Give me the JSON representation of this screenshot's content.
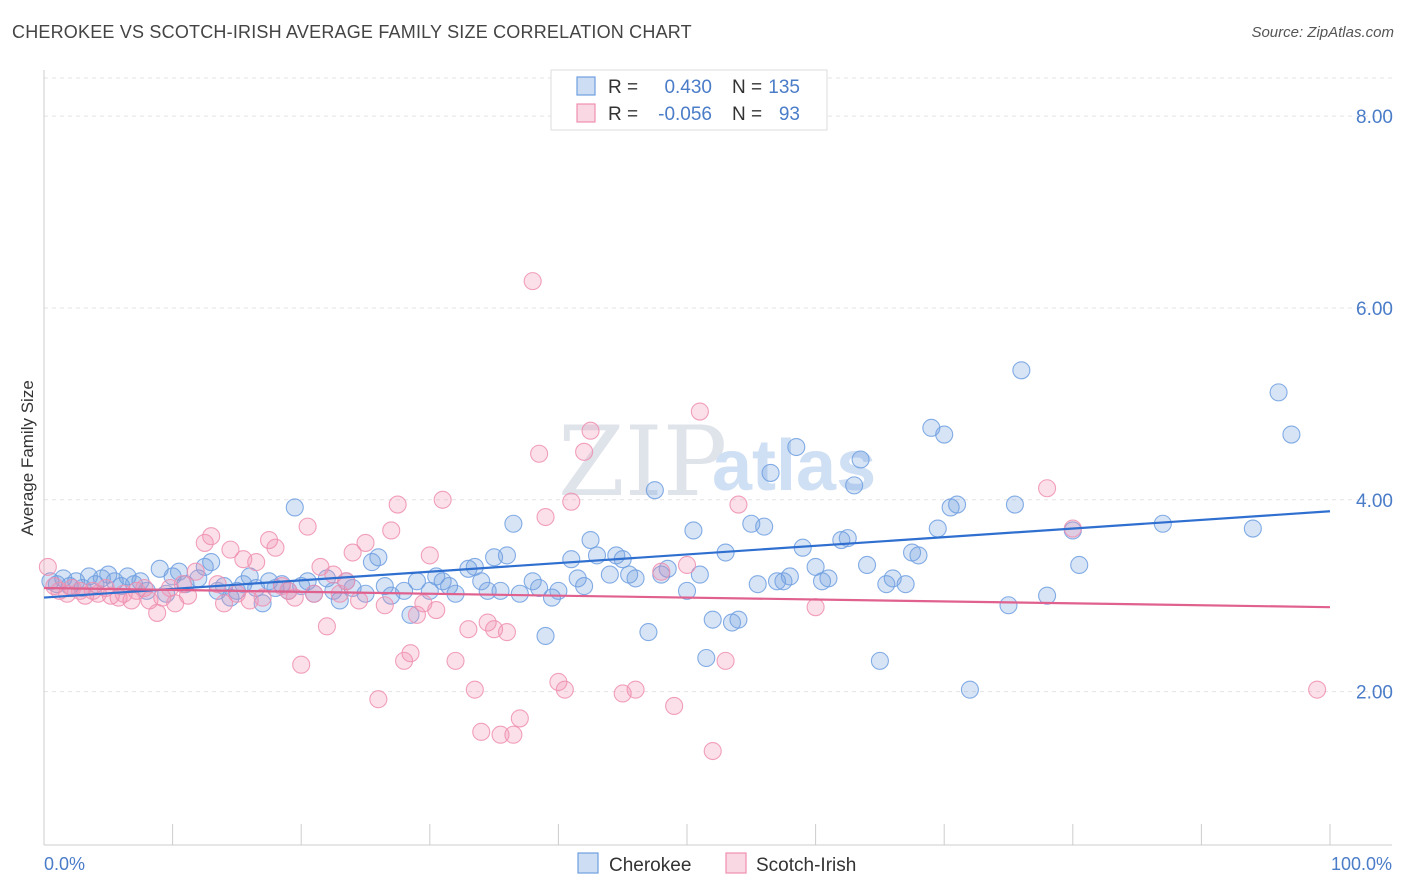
{
  "header": {
    "title": "CHEROKEE VS SCOTCH-IRISH AVERAGE FAMILY SIZE CORRELATION CHART",
    "source": "Source: ZipAtlas.com"
  },
  "watermark": {
    "zip": "ZIP",
    "atlas": "atlas"
  },
  "legend_top": [
    {
      "r_label": "R =",
      "r_value": "0.430",
      "n_label": "N =",
      "n_value": "135",
      "color": "#6f9fe0"
    },
    {
      "r_label": "R =",
      "r_value": "-0.056",
      "n_label": "N =",
      "n_value": "93",
      "color": "#ef8fb0"
    }
  ],
  "legend_bottom": [
    {
      "label": "Cherokee",
      "color": "#6f9fe0"
    },
    {
      "label": "Scotch-Irish",
      "color": "#ef8fb0"
    }
  ],
  "chart_data": {
    "type": "scatter",
    "title": "CHEROKEE VS SCOTCH-IRISH AVERAGE FAMILY SIZE CORRELATION CHART",
    "xlabel": "",
    "ylabel": "Average Family Size",
    "xlim": [
      0,
      100
    ],
    "ylim": [
      0.4,
      8.2
    ],
    "x_tick_labels": [
      "0.0%",
      "100.0%"
    ],
    "y_ticks": [
      2,
      4,
      6,
      8
    ],
    "y_tick_labels": [
      "2.00",
      "4.00",
      "6.00",
      "8.00"
    ],
    "grid": true,
    "legend_position": "top-center",
    "series": [
      {
        "name": "Cherokee",
        "color": "#6f9fe0",
        "trend": {
          "x": [
            0,
            100
          ],
          "y": [
            2.98,
            3.88
          ]
        },
        "points": [
          [
            0.5,
            3.15
          ],
          [
            1,
            3.12
          ],
          [
            1.5,
            3.18
          ],
          [
            2,
            3.1
          ],
          [
            2.5,
            3.15
          ],
          [
            3,
            3.08
          ],
          [
            3.5,
            3.2
          ],
          [
            4,
            3.12
          ],
          [
            4.5,
            3.18
          ],
          [
            5,
            3.22
          ],
          [
            5.5,
            3.15
          ],
          [
            6,
            3.1
          ],
          [
            6.5,
            3.2
          ],
          [
            7,
            3.12
          ],
          [
            7.5,
            3.15
          ],
          [
            8,
            3.05
          ],
          [
            9,
            3.28
          ],
          [
            9.5,
            3.02
          ],
          [
            10,
            3.2
          ],
          [
            10.5,
            3.25
          ],
          [
            11,
            3.12
          ],
          [
            12,
            3.18
          ],
          [
            12.5,
            3.3
          ],
          [
            13,
            3.35
          ],
          [
            13.5,
            3.05
          ],
          [
            14,
            3.1
          ],
          [
            14.5,
            2.98
          ],
          [
            15,
            3.05
          ],
          [
            15.5,
            3.12
          ],
          [
            16,
            3.2
          ],
          [
            16.5,
            3.08
          ],
          [
            17,
            2.92
          ],
          [
            17.5,
            3.15
          ],
          [
            18,
            3.08
          ],
          [
            18.5,
            3.12
          ],
          [
            19,
            3.05
          ],
          [
            19.5,
            3.92
          ],
          [
            20,
            3.1
          ],
          [
            20.5,
            3.15
          ],
          [
            21,
            3.02
          ],
          [
            22,
            3.18
          ],
          [
            22.5,
            3.05
          ],
          [
            23,
            2.95
          ],
          [
            23.5,
            3.15
          ],
          [
            24,
            3.08
          ],
          [
            25,
            3.02
          ],
          [
            25.5,
            3.35
          ],
          [
            26,
            3.4
          ],
          [
            26.5,
            3.1
          ],
          [
            27,
            3.0
          ],
          [
            28,
            3.05
          ],
          [
            28.5,
            2.8
          ],
          [
            29,
            3.15
          ],
          [
            30,
            3.05
          ],
          [
            30.5,
            3.2
          ],
          [
            31,
            3.15
          ],
          [
            31.5,
            3.1
          ],
          [
            32,
            3.02
          ],
          [
            33,
            3.28
          ],
          [
            33.5,
            3.3
          ],
          [
            34,
            3.15
          ],
          [
            34.5,
            3.05
          ],
          [
            35,
            3.4
          ],
          [
            35.5,
            3.05
          ],
          [
            36,
            3.42
          ],
          [
            36.5,
            3.75
          ],
          [
            37,
            3.02
          ],
          [
            38,
            3.15
          ],
          [
            38.5,
            3.08
          ],
          [
            39,
            2.58
          ],
          [
            39.5,
            2.98
          ],
          [
            40,
            3.05
          ],
          [
            41,
            3.38
          ],
          [
            41.5,
            3.18
          ],
          [
            42,
            3.1
          ],
          [
            42.5,
            3.58
          ],
          [
            43,
            3.42
          ],
          [
            44,
            3.22
          ],
          [
            44.5,
            3.42
          ],
          [
            45,
            3.38
          ],
          [
            45.5,
            3.22
          ],
          [
            46,
            3.18
          ],
          [
            47,
            2.62
          ],
          [
            47.5,
            4.1
          ],
          [
            48,
            3.22
          ],
          [
            48.5,
            3.28
          ],
          [
            50,
            3.05
          ],
          [
            50.5,
            3.68
          ],
          [
            51,
            3.22
          ],
          [
            51.5,
            2.35
          ],
          [
            52,
            2.75
          ],
          [
            53,
            3.45
          ],
          [
            53.5,
            2.72
          ],
          [
            54,
            2.75
          ],
          [
            55,
            3.75
          ],
          [
            55.5,
            3.12
          ],
          [
            56,
            3.72
          ],
          [
            56.5,
            4.28
          ],
          [
            57,
            3.15
          ],
          [
            57.5,
            3.15
          ],
          [
            58,
            3.2
          ],
          [
            58.5,
            4.55
          ],
          [
            59,
            3.5
          ],
          [
            60,
            3.3
          ],
          [
            60.5,
            3.15
          ],
          [
            61,
            3.18
          ],
          [
            62,
            3.58
          ],
          [
            62.5,
            3.6
          ],
          [
            63,
            4.15
          ],
          [
            63.5,
            4.42
          ],
          [
            64,
            3.32
          ],
          [
            65,
            2.32
          ],
          [
            65.5,
            3.12
          ],
          [
            66,
            3.18
          ],
          [
            67,
            3.12
          ],
          [
            67.5,
            3.45
          ],
          [
            68,
            3.42
          ],
          [
            69,
            4.75
          ],
          [
            69.5,
            3.7
          ],
          [
            70,
            4.68
          ],
          [
            70.5,
            3.92
          ],
          [
            71,
            3.95
          ],
          [
            72,
            2.02
          ],
          [
            75,
            2.9
          ],
          [
            75.5,
            3.95
          ],
          [
            76,
            5.35
          ],
          [
            78,
            3.0
          ],
          [
            80,
            3.68
          ],
          [
            80.5,
            3.32
          ],
          [
            87,
            3.75
          ],
          [
            94,
            3.7
          ],
          [
            96,
            5.12
          ],
          [
            97,
            4.68
          ]
        ]
      },
      {
        "name": "Scotch-Irish",
        "color": "#ef8fb0",
        "trend": {
          "x": [
            0,
            100
          ],
          "y": [
            3.08,
            2.88
          ]
        },
        "points": [
          [
            0.3,
            3.3
          ],
          [
            0.8,
            3.1
          ],
          [
            1.2,
            3.05
          ],
          [
            1.8,
            3.02
          ],
          [
            2.2,
            3.08
          ],
          [
            2.8,
            3.05
          ],
          [
            3.2,
            3.0
          ],
          [
            3.8,
            3.05
          ],
          [
            4.2,
            3.02
          ],
          [
            4.8,
            3.08
          ],
          [
            5.2,
            3.0
          ],
          [
            5.8,
            2.98
          ],
          [
            6.2,
            3.02
          ],
          [
            6.8,
            2.95
          ],
          [
            7.2,
            3.05
          ],
          [
            7.8,
            3.08
          ],
          [
            8.2,
            2.95
          ],
          [
            8.8,
            2.82
          ],
          [
            9.2,
            2.98
          ],
          [
            9.8,
            3.08
          ],
          [
            10.2,
            2.92
          ],
          [
            10.8,
            3.12
          ],
          [
            11.2,
            3.0
          ],
          [
            11.8,
            3.25
          ],
          [
            12.5,
            3.55
          ],
          [
            13,
            3.62
          ],
          [
            13.5,
            3.12
          ],
          [
            14,
            2.92
          ],
          [
            14.5,
            3.48
          ],
          [
            15,
            3.02
          ],
          [
            15.5,
            3.38
          ],
          [
            16,
            2.95
          ],
          [
            16.5,
            3.35
          ],
          [
            17,
            2.98
          ],
          [
            17.5,
            3.58
          ],
          [
            18,
            3.5
          ],
          [
            18.5,
            3.1
          ],
          [
            19,
            3.05
          ],
          [
            19.5,
            2.98
          ],
          [
            20,
            2.28
          ],
          [
            20.5,
            3.72
          ],
          [
            21,
            3.02
          ],
          [
            21.5,
            3.3
          ],
          [
            22,
            2.68
          ],
          [
            22.5,
            3.22
          ],
          [
            23,
            3.02
          ],
          [
            23.5,
            3.15
          ],
          [
            24,
            3.45
          ],
          [
            24.5,
            2.95
          ],
          [
            25,
            3.55
          ],
          [
            26,
            1.92
          ],
          [
            26.5,
            2.9
          ],
          [
            27,
            3.68
          ],
          [
            27.5,
            3.95
          ],
          [
            28,
            2.32
          ],
          [
            28.5,
            2.4
          ],
          [
            29,
            2.8
          ],
          [
            29.5,
            2.92
          ],
          [
            30,
            3.42
          ],
          [
            30.5,
            2.85
          ],
          [
            31,
            4.0
          ],
          [
            32,
            2.32
          ],
          [
            33,
            2.65
          ],
          [
            33.5,
            2.02
          ],
          [
            34,
            1.58
          ],
          [
            34.5,
            2.72
          ],
          [
            35,
            2.65
          ],
          [
            35.5,
            1.55
          ],
          [
            36,
            2.62
          ],
          [
            36.5,
            1.55
          ],
          [
            37,
            1.72
          ],
          [
            38,
            6.28
          ],
          [
            38.5,
            4.48
          ],
          [
            39,
            3.82
          ],
          [
            40,
            2.1
          ],
          [
            40.5,
            2.02
          ],
          [
            41,
            3.98
          ],
          [
            42,
            4.5
          ],
          [
            42.5,
            4.72
          ],
          [
            45,
            1.98
          ],
          [
            46,
            2.02
          ],
          [
            48,
            3.25
          ],
          [
            49,
            1.85
          ],
          [
            50,
            3.32
          ],
          [
            51,
            4.92
          ],
          [
            52,
            1.38
          ],
          [
            53,
            2.32
          ],
          [
            54,
            3.95
          ],
          [
            60,
            2.88
          ],
          [
            78,
            4.12
          ],
          [
            80,
            3.7
          ],
          [
            99,
            2.02
          ]
        ]
      }
    ]
  }
}
